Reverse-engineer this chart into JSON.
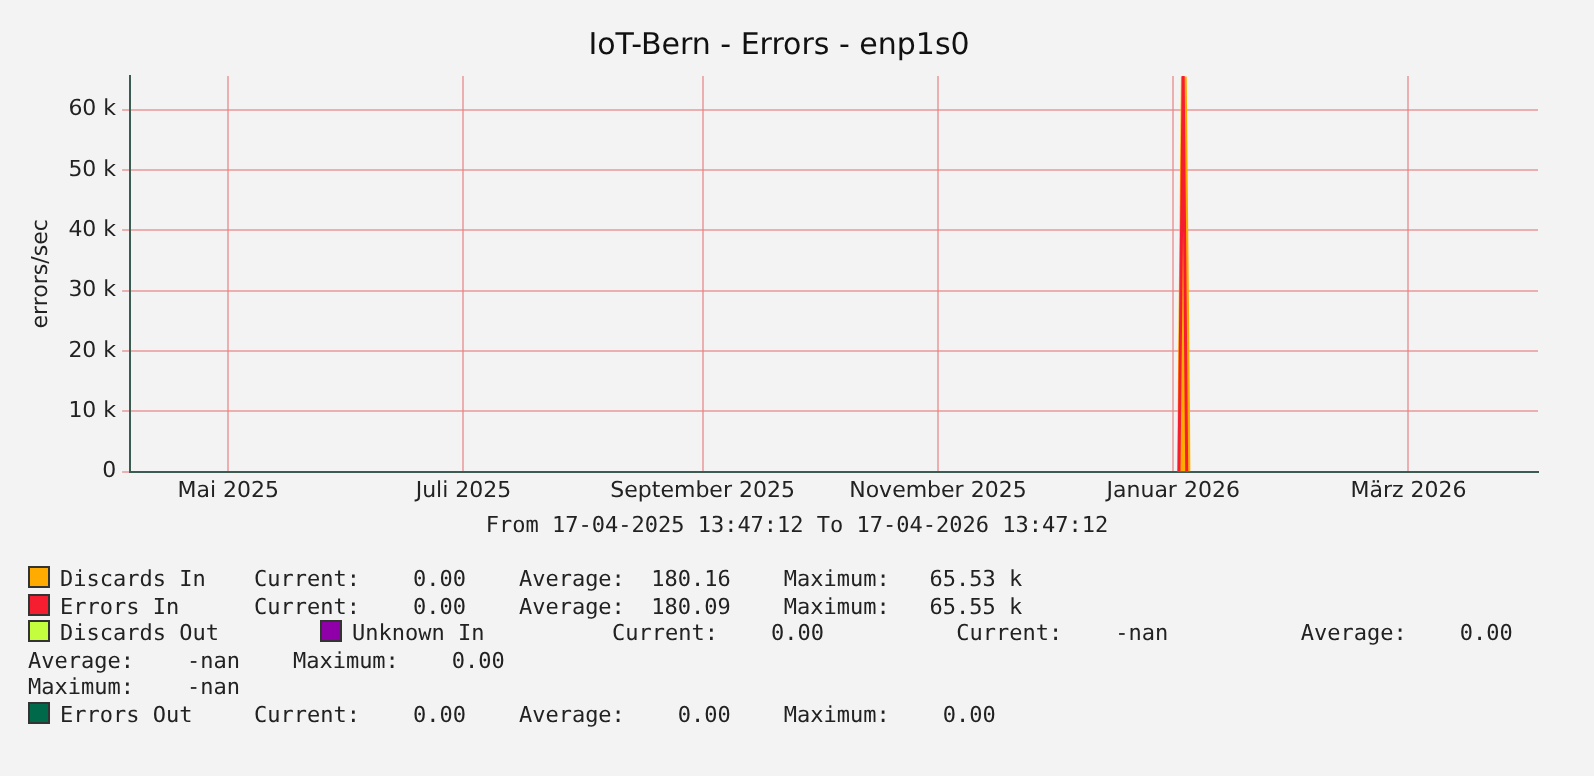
{
  "chart_data": {
    "type": "line",
    "title": "IoT-Bern - Errors - enp1s0",
    "ylabel": "errors/sec",
    "xlim": [
      "2025-04-17T13:47",
      "2026-04-17T13:47"
    ],
    "xticks": [
      {
        "value": "2025-05-13",
        "label": "Mai 2025"
      },
      {
        "value": "2025-07-13",
        "label": "Juli 2025"
      },
      {
        "value": "2025-09-13",
        "label": "September 2025"
      },
      {
        "value": "2025-11-13",
        "label": "November 2025"
      },
      {
        "value": "2026-01-13",
        "label": "Januar 2026"
      },
      {
        "value": "2026-03-15",
        "label": "März 2026"
      }
    ],
    "ylim": [
      0,
      65600
    ],
    "yticks": [
      {
        "value": 0,
        "label": "0"
      },
      {
        "value": 10000,
        "label": "10 k"
      },
      {
        "value": 20000,
        "label": "20 k"
      },
      {
        "value": 30000,
        "label": "30 k"
      },
      {
        "value": 40000,
        "label": "40 k"
      },
      {
        "value": 50000,
        "label": "50 k"
      },
      {
        "value": 60000,
        "label": "60 k"
      }
    ],
    "grid": true,
    "legend": "bottom",
    "series": [
      {
        "name": "Discards In",
        "type": "area",
        "color": "#ffab00",
        "x": [
          "2026-01-14T00:00",
          "2026-01-15T00:00",
          "2026-01-16T12:00",
          "2026-01-17T12:00"
        ],
        "values": [
          0,
          65500,
          65500,
          0
        ]
      },
      {
        "name": "Errors In",
        "color": "#f51d30",
        "x": [
          "2026-01-14T12:00",
          "2026-01-15T14:00",
          "2026-01-16T12:00"
        ],
        "values": [
          0,
          65500,
          0
        ]
      },
      {
        "name": "Discards Out",
        "color": "#c4fd3d"
      },
      {
        "name": "Unknown In",
        "color": "#8f00a8"
      },
      {
        "name": "Errors Out",
        "color": "#00694a"
      }
    ],
    "annotations": [
      "From 17-04-2025 13:47:12 To 17-04-2026 13:47:12",
      "Current:    0.00    Average:  180.16    Maximum:   65.53 k",
      "Current:    0.00    Average:  180.09    Maximum:   65.55 k",
      "Current:    0.00          Current:    -nan          Average:    0.00",
      "Average:    -nan    Maximum:    0.00",
      "Maximum:    -nan",
      "Current:    0.00    Average:    0.00    Maximum:    0.00"
    ]
  }
}
